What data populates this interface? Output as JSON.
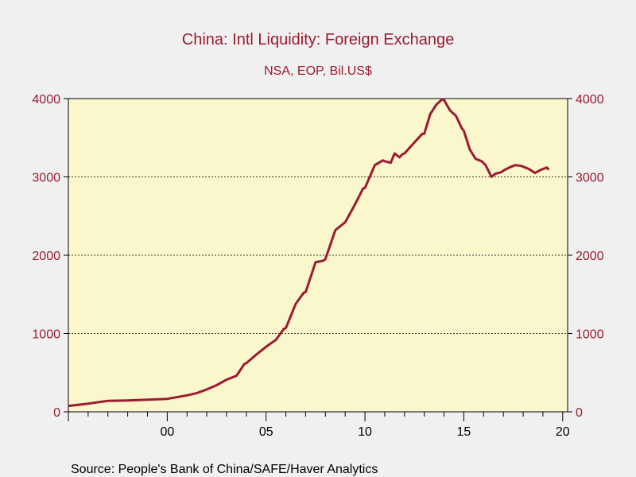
{
  "chart_data": {
    "type": "line",
    "title": "China: Intl Liquidity: Foreign Exchange",
    "subtitle": "NSA, EOP, Bil.US$",
    "source": "Source:  People's Bank of China/SAFE/Haver Analytics",
    "ylim": [
      0,
      4000
    ],
    "yticks": [
      "0",
      "1000",
      "2000",
      "3000",
      "4000"
    ],
    "xlim": [
      1995.0,
      2020.25
    ],
    "xticks": [
      {
        "value": 2000,
        "label": "00"
      },
      {
        "value": 2005,
        "label": "05"
      },
      {
        "value": 2010,
        "label": "10"
      },
      {
        "value": 2015,
        "label": "15"
      },
      {
        "value": 2020,
        "label": "20"
      }
    ],
    "grid": "horizontal dashed",
    "colors": {
      "line": "#9b1b30",
      "plot_bg": "#fbf7cc",
      "page_bg": "#f0f0f0"
    },
    "series": [
      {
        "x": [
          1995.0,
          1996.0,
          1997.0,
          1998.0,
          1999.0,
          2000.0,
          2001.0,
          2001.5,
          2002.0,
          2002.5,
          2003.0,
          2003.5,
          2003.9,
          2004.0,
          2004.5,
          2004.9,
          2005.0,
          2005.5,
          2005.9,
          2006.0,
          2006.5,
          2006.9,
          2007.0,
          2007.5,
          2007.9,
          2008.0,
          2008.5,
          2008.9,
          2009.0,
          2009.5,
          2009.9,
          2010.0,
          2010.5,
          2010.9,
          2011.0,
          2011.3,
          2011.5,
          2011.75,
          2011.9,
          2012.0,
          2012.5,
          2012.9,
          2013.0,
          2013.3,
          2013.6,
          2013.9,
          2014.0,
          2014.3,
          2014.6,
          2014.9,
          2015.0,
          2015.3,
          2015.6,
          2015.9,
          2016.1,
          2016.4,
          2016.6,
          2016.9,
          2017.0,
          2017.3,
          2017.6,
          2017.9,
          2018.0,
          2018.3,
          2018.6,
          2018.9,
          2019.0,
          2019.2,
          2019.3
        ],
        "y": [
          75,
          105,
          140,
          145,
          155,
          165,
          210,
          240,
          285,
          340,
          410,
          460,
          610,
          620,
          730,
          810,
          830,
          920,
          1060,
          1070,
          1380,
          1520,
          1530,
          1910,
          1930,
          1950,
          2320,
          2400,
          2420,
          2650,
          2850,
          2860,
          3150,
          3210,
          3200,
          3180,
          3300,
          3250,
          3290,
          3300,
          3440,
          3550,
          3550,
          3800,
          3920,
          3990,
          3980,
          3850,
          3780,
          3620,
          3590,
          3350,
          3230,
          3200,
          3150,
          3000,
          3040,
          3060,
          3080,
          3120,
          3150,
          3140,
          3130,
          3100,
          3050,
          3090,
          3100,
          3120,
          3090
        ]
      }
    ]
  }
}
